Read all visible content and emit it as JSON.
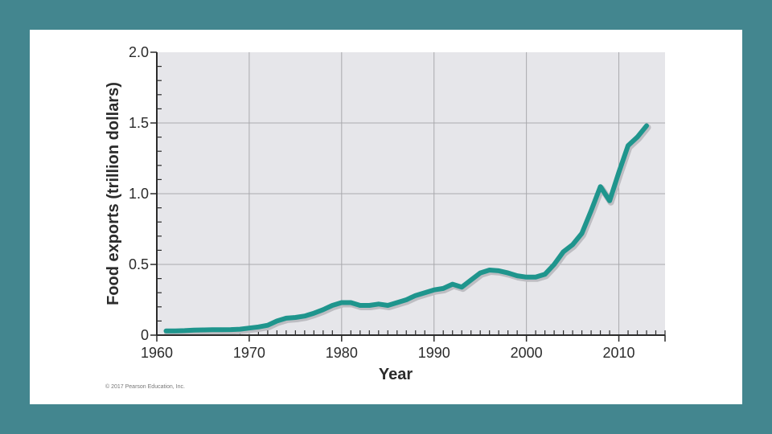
{
  "copyright": "© 2017 Pearson Education, Inc.",
  "colors": {
    "frame": "#43868f",
    "plot_background": "#e6e6ea",
    "grid": "#a9a9ad",
    "line": "#1f958d",
    "line_shadow": "#bdbdc2",
    "axis": "#2b2b2b"
  },
  "chart_data": {
    "type": "line",
    "title": "",
    "xlabel": "Year",
    "ylabel": "Food exports (trillion dollars)",
    "xlim": [
      1960,
      2015
    ],
    "ylim": [
      0,
      2.0
    ],
    "x_ticks": [
      1960,
      1970,
      1980,
      1990,
      2000,
      2010
    ],
    "x_tick_labels": [
      "1960",
      "1970",
      "1980",
      "1990",
      "2000",
      "2010"
    ],
    "y_ticks": [
      0,
      0.5,
      1.0,
      1.5,
      2.0
    ],
    "y_tick_labels": [
      "0",
      "0.5",
      "1.0",
      "1.5",
      "2.0"
    ],
    "grid": true,
    "legend": "none",
    "series": [
      {
        "x": [
          1961,
          1962,
          1963,
          1964,
          1965,
          1966,
          1967,
          1968,
          1969,
          1970,
          1971,
          1972,
          1973,
          1974,
          1975,
          1976,
          1977,
          1978,
          1979,
          1980,
          1981,
          1982,
          1983,
          1984,
          1985,
          1986,
          1987,
          1988,
          1989,
          1990,
          1991,
          1992,
          1993,
          1994,
          1995,
          1996,
          1997,
          1998,
          1999,
          2000,
          2001,
          2002,
          2003,
          2004,
          2005,
          2006,
          2007,
          2008,
          2009,
          2010,
          2011,
          2012,
          2013
        ],
        "y": [
          0.03,
          0.03,
          0.032,
          0.035,
          0.037,
          0.038,
          0.038,
          0.039,
          0.042,
          0.05,
          0.058,
          0.07,
          0.1,
          0.12,
          0.125,
          0.135,
          0.155,
          0.18,
          0.21,
          0.23,
          0.23,
          0.21,
          0.21,
          0.22,
          0.21,
          0.23,
          0.25,
          0.28,
          0.3,
          0.32,
          0.33,
          0.36,
          0.34,
          0.39,
          0.44,
          0.46,
          0.455,
          0.44,
          0.42,
          0.41,
          0.41,
          0.43,
          0.5,
          0.59,
          0.64,
          0.72,
          0.88,
          1.05,
          0.95,
          1.15,
          1.34,
          1.4,
          1.48
        ]
      }
    ]
  }
}
